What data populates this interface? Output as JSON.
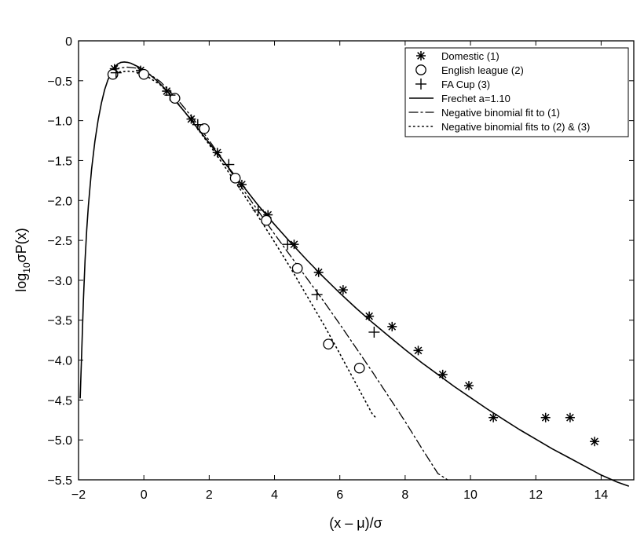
{
  "chart_data": {
    "type": "scatter",
    "xlabel": "(x – μ)/σ",
    "ylabel_parts": {
      "main": "log",
      "sub": "10",
      "tail": "σP(x)"
    },
    "xlim": [
      -2,
      15
    ],
    "ylim": [
      -5.5,
      0
    ],
    "xticks": [
      -2,
      0,
      2,
      4,
      6,
      8,
      10,
      12,
      14
    ],
    "xtick_labels": [
      "−2",
      "0",
      "2",
      "4",
      "6",
      "8",
      "10",
      "12",
      "14"
    ],
    "yticks": [
      0,
      -0.5,
      -1.0,
      -1.5,
      -2.0,
      -2.5,
      -3.0,
      -3.5,
      -4.0,
      -4.5,
      -5.0,
      -5.5
    ],
    "ytick_labels": [
      "0",
      "−0.5",
      "−1.0",
      "−1.5",
      "−2.0",
      "−2.5",
      "−3.0",
      "−3.5",
      "−4.0",
      "−4.5",
      "−5.0",
      "−5.5"
    ],
    "grid": false,
    "legend_position": "top-right",
    "series": [
      {
        "name": "Domestic (1)",
        "marker": "asterisk",
        "kind": "points",
        "x": [
          -0.9,
          -0.1,
          0.7,
          1.45,
          2.25,
          3.0,
          3.8,
          4.6,
          5.35,
          6.1,
          6.9,
          7.6,
          8.4,
          9.15,
          9.95,
          10.7,
          12.3,
          13.05,
          13.8
        ],
        "y": [
          -0.35,
          -0.37,
          -0.63,
          -0.98,
          -1.4,
          -1.8,
          -2.18,
          -2.55,
          -2.9,
          -3.12,
          -3.45,
          -3.58,
          -3.88,
          -4.18,
          -4.32,
          -4.72,
          -4.72,
          -4.72,
          -5.02
        ]
      },
      {
        "name": "English league (2)",
        "marker": "circle",
        "kind": "points",
        "x": [
          -0.95,
          0.0,
          0.95,
          1.85,
          2.8,
          3.75,
          4.7,
          5.65,
          6.6
        ],
        "y": [
          -0.42,
          -0.42,
          -0.72,
          -1.1,
          -1.72,
          -2.25,
          -2.85,
          -3.8,
          -4.1
        ]
      },
      {
        "name": "FA Cup (3)",
        "marker": "plus",
        "kind": "points",
        "x": [
          -0.85,
          0.8,
          1.65,
          2.6,
          3.5,
          4.4,
          5.3,
          7.05
        ],
        "y": [
          -0.4,
          -0.68,
          -1.05,
          -1.55,
          -2.12,
          -2.55,
          -3.18,
          -3.65
        ]
      },
      {
        "name": "Frechet a=1.10",
        "style": "solid",
        "kind": "line",
        "x": [
          -1.95,
          -1.9,
          -1.85,
          -1.8,
          -1.75,
          -1.7,
          -1.6,
          -1.5,
          -1.4,
          -1.3,
          -1.2,
          -1.1,
          -1.0,
          -0.9,
          -0.8,
          -0.7,
          -0.6,
          -0.5,
          -0.4,
          -0.3,
          -0.2,
          -0.1,
          0.0,
          0.2,
          0.4,
          0.6,
          0.8,
          1.0,
          1.25,
          1.5,
          1.75,
          2.0,
          2.25,
          2.5,
          3.0,
          3.5,
          4.0,
          4.5,
          5.0,
          5.5,
          6.0,
          6.5,
          7.0,
          7.5,
          8.0,
          8.5,
          9.0,
          9.5,
          10.0,
          10.5,
          11.0,
          11.5,
          12.0,
          12.5,
          13.0,
          13.5,
          14.0,
          14.5,
          14.85
        ],
        "y": [
          -4.48,
          -3.85,
          -3.25,
          -2.75,
          -2.37,
          -2.07,
          -1.61,
          -1.26,
          -0.99,
          -0.78,
          -0.61,
          -0.49,
          -0.39,
          -0.33,
          -0.29,
          -0.27,
          -0.265,
          -0.27,
          -0.28,
          -0.3,
          -0.32,
          -0.34,
          -0.37,
          -0.43,
          -0.5,
          -0.58,
          -0.67,
          -0.77,
          -0.89,
          -1.02,
          -1.15,
          -1.28,
          -1.41,
          -1.54,
          -1.8,
          -2.06,
          -2.3,
          -2.53,
          -2.75,
          -2.96,
          -3.16,
          -3.35,
          -3.53,
          -3.7,
          -3.87,
          -4.03,
          -4.18,
          -4.33,
          -4.47,
          -4.61,
          -4.74,
          -4.87,
          -4.99,
          -5.11,
          -5.22,
          -5.33,
          -5.44,
          -5.53,
          -5.58
        ]
      },
      {
        "name": "Negative binomial fit to (1)",
        "style": "dashdot",
        "kind": "line",
        "x": [
          -1.0,
          -0.75,
          -0.5,
          -0.25,
          0.0,
          0.5,
          1.0,
          1.5,
          2.0,
          2.5,
          3.0,
          3.5,
          4.0,
          4.5,
          5.0,
          5.5,
          6.0,
          6.5,
          7.0,
          7.5,
          8.0,
          8.5,
          9.0,
          9.3
        ],
        "y": [
          -0.38,
          -0.34,
          -0.33,
          -0.34,
          -0.37,
          -0.51,
          -0.72,
          -0.97,
          -1.25,
          -1.54,
          -1.84,
          -2.13,
          -2.42,
          -2.7,
          -2.98,
          -3.26,
          -3.55,
          -3.85,
          -4.15,
          -4.46,
          -4.77,
          -5.1,
          -5.42,
          -5.5
        ]
      },
      {
        "name": "Negative binomial fits to (2) & (3)",
        "style": "dotted",
        "kind": "line",
        "x": [
          -1.0,
          -0.75,
          -0.5,
          -0.25,
          0.0,
          0.5,
          1.0,
          1.5,
          2.0,
          2.5,
          3.0,
          3.5,
          4.0,
          4.5,
          5.0,
          5.5,
          6.0,
          6.5,
          7.0,
          7.1
        ],
        "y": [
          -0.43,
          -0.39,
          -0.38,
          -0.39,
          -0.42,
          -0.55,
          -0.76,
          -1.02,
          -1.3,
          -1.59,
          -1.89,
          -2.2,
          -2.52,
          -2.85,
          -3.2,
          -3.55,
          -3.92,
          -4.3,
          -4.68,
          -4.72
        ]
      }
    ]
  }
}
